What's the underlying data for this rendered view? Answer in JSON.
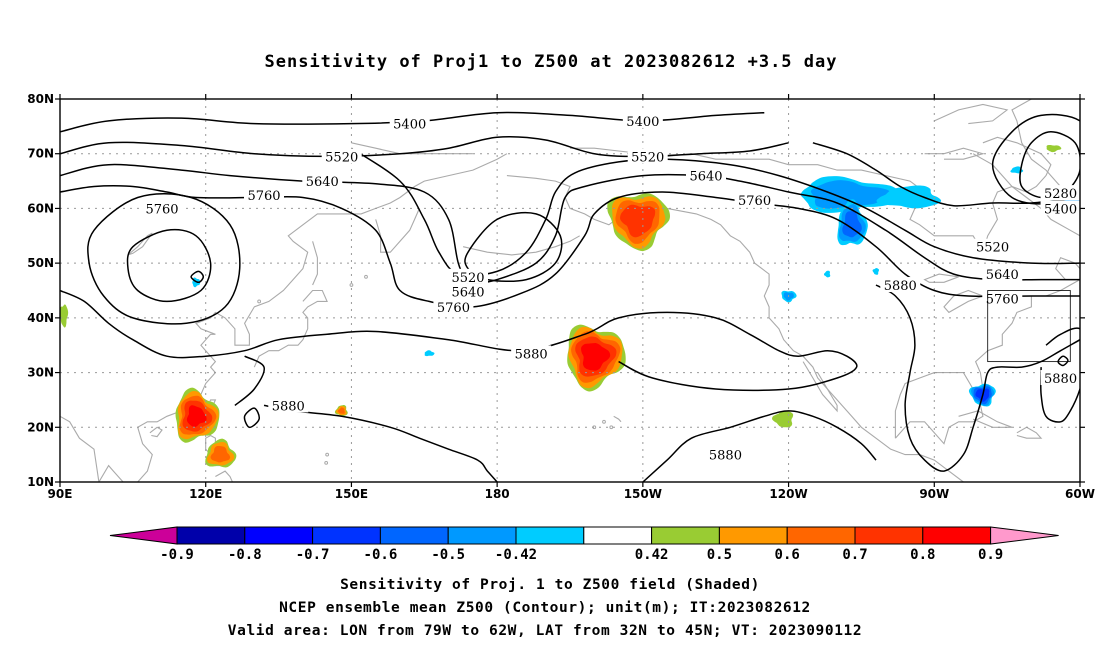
{
  "title": "Sensitivity of Proj1 to Z500 at 2023082612 +3.5 day",
  "map": {
    "lon_range": [
      "90E",
      "300E"
    ],
    "lat_range": [
      10,
      80
    ],
    "lat_ticks": [
      "80N",
      "70N",
      "60N",
      "50N",
      "40N",
      "30N",
      "20N",
      "10N"
    ],
    "lon_ticks": [
      "90E",
      "120E",
      "150E",
      "180",
      "150W",
      "120W",
      "90W",
      "60W"
    ],
    "grid": "dotted",
    "coastline_color": "#aaaaaa",
    "contour_color": "#000000"
  },
  "contours": {
    "levels": [
      5280,
      5400,
      5520,
      5640,
      5760,
      5880
    ],
    "labels": [
      {
        "text": "5400",
        "lon": 162,
        "lat": 75.5
      },
      {
        "text": "5400",
        "lon": 210,
        "lat": 76
      },
      {
        "text": "5520",
        "lon": 148,
        "lat": 69.5
      },
      {
        "text": "5520",
        "lon": 211,
        "lat": 69.5
      },
      {
        "text": "5640",
        "lon": 144,
        "lat": 65
      },
      {
        "text": "5640",
        "lon": 223,
        "lat": 66
      },
      {
        "text": "5760",
        "lon": 132,
        "lat": 62.5
      },
      {
        "text": "5760",
        "lon": 111,
        "lat": 60
      },
      {
        "text": "5760",
        "lon": 233,
        "lat": 61.5
      },
      {
        "text": "5520",
        "lon": 174,
        "lat": 47.5
      },
      {
        "text": "5640",
        "lon": 174,
        "lat": 44.8
      },
      {
        "text": "5760",
        "lon": 171,
        "lat": 42
      },
      {
        "text": "5880",
        "lon": 187,
        "lat": 33.5
      },
      {
        "text": "5880",
        "lon": 263,
        "lat": 46
      },
      {
        "text": "5880",
        "lon": 137,
        "lat": 24
      },
      {
        "text": "5880",
        "lon": 227,
        "lat": 15
      },
      {
        "text": "5880",
        "lon": 296,
        "lat": 29
      },
      {
        "text": "5280",
        "lon": 296,
        "lat": 62.8
      },
      {
        "text": "5400",
        "lon": 296,
        "lat": 60
      },
      {
        "text": "5520",
        "lon": 282,
        "lat": 53
      },
      {
        "text": "5640",
        "lon": 284,
        "lat": 48
      },
      {
        "text": "5760",
        "lon": 284,
        "lat": 43.5
      }
    ]
  },
  "shading": {
    "positive_colors": [
      "#99cc33",
      "#ff9900",
      "#ff6600",
      "#ff3300",
      "#ff0000",
      "#ff99cc"
    ],
    "negative_colors": [
      "#cc0099",
      "#0000aa",
      "#0000ff",
      "#0033ff",
      "#0066ff",
      "#0099ff",
      "#00ccff"
    ],
    "blobs": [
      {
        "sign": "+",
        "lon": 209,
        "lat": 58,
        "rx": 6,
        "ry": 5,
        "peak": 0.75
      },
      {
        "sign": "+",
        "lon": 200,
        "lat": 33,
        "rx": 6,
        "ry": 5.5,
        "peak": 0.82
      },
      {
        "sign": "+",
        "lon": 118,
        "lat": 22,
        "rx": 4.5,
        "ry": 4.5,
        "peak": 0.8
      },
      {
        "sign": "+",
        "lon": 123,
        "lat": 15,
        "rx": 3,
        "ry": 2.5,
        "peak": 0.62
      },
      {
        "sign": "+",
        "lon": 148,
        "lat": 23,
        "rx": 1.2,
        "ry": 1,
        "peak": 0.6
      },
      {
        "sign": "+",
        "lon": 239,
        "lat": 21.5,
        "rx": 2,
        "ry": 1.5,
        "peak": 0.45
      },
      {
        "sign": "+",
        "lon": 90.8,
        "lat": 40.5,
        "rx": 0.8,
        "ry": 2,
        "peak": 0.45
      },
      {
        "sign": "+",
        "lon": 294.5,
        "lat": 71,
        "rx": 1.5,
        "ry": 0.6,
        "peak": 0.45
      },
      {
        "sign": "-",
        "lon": 252,
        "lat": 62.5,
        "rx": 10,
        "ry": 3,
        "peak": -0.55
      },
      {
        "sign": "-",
        "lon": 253,
        "lat": 57,
        "rx": 3,
        "ry": 4,
        "peak": -0.62
      },
      {
        "sign": "-",
        "lon": 265,
        "lat": 62,
        "rx": 6,
        "ry": 2,
        "peak": -0.45
      },
      {
        "sign": "-",
        "lon": 299,
        "lat": 61.5,
        "rx": 4,
        "ry": 1.5,
        "peak": -0.55
      },
      {
        "sign": "-",
        "lon": 280,
        "lat": 26,
        "rx": 2.5,
        "ry": 2,
        "peak": -0.75
      },
      {
        "sign": "-",
        "lon": 240,
        "lat": 44,
        "rx": 1.5,
        "ry": 1,
        "peak": -0.5
      },
      {
        "sign": "-",
        "lon": 118,
        "lat": 46.5,
        "rx": 0.8,
        "ry": 0.8,
        "peak": -0.45
      },
      {
        "sign": "-",
        "lon": 166,
        "lat": 33.5,
        "rx": 1,
        "ry": 0.5,
        "peak": -0.45
      },
      {
        "sign": "-",
        "lon": 287,
        "lat": 67,
        "rx": 1.2,
        "ry": 0.6,
        "peak": -0.45
      },
      {
        "sign": "-",
        "lon": 248,
        "lat": 48,
        "rx": 0.6,
        "ry": 0.6,
        "peak": -0.45
      },
      {
        "sign": "-",
        "lon": 258,
        "lat": 48.5,
        "rx": 0.6,
        "ry": 0.6,
        "peak": -0.45
      }
    ]
  },
  "valid_box": {
    "lon_min": 281,
    "lon_max": 298,
    "lat_min": 32,
    "lat_max": 45
  },
  "colorbar": {
    "tick_labels": [
      "-0.9",
      "-0.8",
      "-0.7",
      "-0.6",
      "-0.5",
      "-0.42",
      "0.42",
      "0.5",
      "0.6",
      "0.7",
      "0.8",
      "0.9"
    ],
    "colors": [
      "#0000aa",
      "#0000ff",
      "#0033ff",
      "#0066ff",
      "#0099ff",
      "#00ccff",
      "#ffffff",
      "#99cc33",
      "#ff9900",
      "#ff6600",
      "#ff3300",
      "#ff0000"
    ],
    "left_arrow_color": "#cc0099",
    "right_arrow_color": "#ff99cc"
  },
  "caption": {
    "line1": "Sensitivity of Proj. 1 to Z500 field (Shaded)",
    "line2": "NCEP ensemble mean Z500 (Contour); unit(m); IT:2023082612",
    "line3": "Valid area: LON from 79W to 62W, LAT from 32N to 45N; VT: 2023090112"
  }
}
